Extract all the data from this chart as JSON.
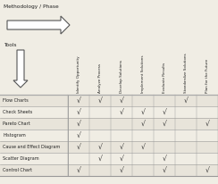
{
  "title": "Methodology / Phase",
  "tools_label": "Tools",
  "columns": [
    "Identify Opportunity",
    "Analyze Process",
    "Develop Solutions",
    "Implement Solutions",
    "Evaluate Results",
    "Standardize Solutions",
    "Plan for the Future"
  ],
  "rows": [
    "Flow Charts",
    "Check Sheets",
    "Pareto Chart",
    "Histogram",
    "Cause and Effect Diagram",
    "Scatter Diagram",
    "Control Chart"
  ],
  "checks": [
    [
      1,
      1,
      1,
      0,
      0,
      1,
      0
    ],
    [
      1,
      0,
      1,
      1,
      1,
      0,
      0
    ],
    [
      1,
      0,
      0,
      1,
      1,
      0,
      1
    ],
    [
      1,
      0,
      0,
      0,
      0,
      0,
      0
    ],
    [
      1,
      1,
      1,
      1,
      0,
      0,
      0
    ],
    [
      0,
      1,
      1,
      0,
      1,
      0,
      0
    ],
    [
      1,
      0,
      1,
      0,
      1,
      0,
      1
    ]
  ],
  "bg_color": "#f0ede4",
  "border_color": "#999999",
  "text_color": "#222222",
  "check_color": "#333333",
  "row_even_color": "#e8e4da",
  "row_odd_color": "#f0ede4",
  "arrow_face": "#ffffff",
  "arrow_edge": "#555555",
  "header_sep_color": "#aaaaaa",
  "fig_w": 2.44,
  "fig_h": 2.06,
  "dpi": 100
}
